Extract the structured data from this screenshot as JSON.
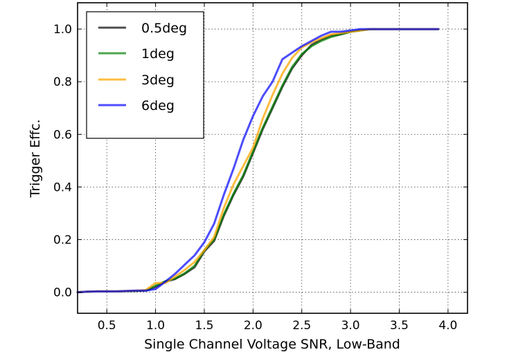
{
  "chart_data": {
    "type": "line",
    "title": "",
    "xlabel": "Single Channel Voltage SNR, Low-Band",
    "ylabel": "Trigger Effc.",
    "xlim": [
      0.2,
      4.2
    ],
    "ylim": [
      -0.08,
      1.1
    ],
    "grid": true,
    "legend_position": "top-left",
    "x_ticks": [
      0.5,
      1.0,
      1.5,
      2.0,
      2.5,
      3.0,
      3.5,
      4.0
    ],
    "x_tick_labels": [
      "0.5",
      "1.0",
      "1.5",
      "2.0",
      "2.5",
      "3.0",
      "3.5",
      "4.0"
    ],
    "y_ticks": [
      0.0,
      0.2,
      0.4,
      0.6,
      0.8,
      1.0
    ],
    "y_tick_labels": [
      "0.0",
      "0.2",
      "0.4",
      "0.6",
      "0.8",
      "1.0"
    ],
    "x": [
      0.2,
      0.3,
      0.4,
      0.5,
      0.6,
      0.7,
      0.8,
      0.9,
      1.0,
      1.1,
      1.2,
      1.3,
      1.4,
      1.5,
      1.6,
      1.7,
      1.8,
      1.9,
      2.0,
      2.1,
      2.2,
      2.3,
      2.4,
      2.5,
      2.6,
      2.7,
      2.8,
      2.9,
      3.0,
      3.1,
      3.2,
      3.3,
      3.4,
      3.5,
      3.6,
      3.7,
      3.8,
      3.9
    ],
    "series": [
      {
        "name": "0.5deg",
        "color": "#000000",
        "opacity": 0.7,
        "values": [
          0.0,
          0.002,
          0.003,
          0.003,
          0.003,
          0.004,
          0.005,
          0.006,
          0.02,
          0.04,
          0.05,
          0.07,
          0.095,
          0.155,
          0.195,
          0.29,
          0.37,
          0.44,
          0.53,
          0.62,
          0.7,
          0.78,
          0.85,
          0.9,
          0.94,
          0.96,
          0.975,
          0.98,
          0.99,
          0.995,
          1.0,
          1.0,
          1.0,
          1.0,
          1.0,
          1.0,
          1.0,
          1.0
        ]
      },
      {
        "name": "1deg",
        "color": "#008000",
        "opacity": 0.7,
        "values": [
          0.0,
          0.002,
          0.003,
          0.003,
          0.003,
          0.004,
          0.005,
          0.007,
          0.025,
          0.042,
          0.052,
          0.072,
          0.1,
          0.16,
          0.2,
          0.295,
          0.375,
          0.445,
          0.535,
          0.625,
          0.705,
          0.785,
          0.855,
          0.905,
          0.935,
          0.955,
          0.97,
          0.98,
          0.99,
          0.995,
          1.0,
          1.0,
          1.0,
          1.0,
          1.0,
          1.0,
          1.0,
          1.0
        ]
      },
      {
        "name": "3deg",
        "color": "#ffa500",
        "opacity": 0.75,
        "values": [
          0.0,
          0.002,
          0.003,
          0.003,
          0.003,
          0.005,
          0.006,
          0.008,
          0.035,
          0.035,
          0.06,
          0.085,
          0.115,
          0.16,
          0.21,
          0.32,
          0.41,
          0.48,
          0.55,
          0.66,
          0.75,
          0.83,
          0.89,
          0.93,
          0.95,
          0.965,
          0.98,
          0.985,
          0.99,
          0.995,
          1.0,
          1.0,
          1.0,
          1.0,
          1.0,
          1.0,
          1.0,
          1.0
        ]
      },
      {
        "name": "6deg",
        "color": "#0000ff",
        "opacity": 0.7,
        "values": [
          0.0,
          0.002,
          0.003,
          0.003,
          0.003,
          0.005,
          0.006,
          0.006,
          0.012,
          0.04,
          0.07,
          0.105,
          0.14,
          0.19,
          0.26,
          0.37,
          0.47,
          0.58,
          0.67,
          0.745,
          0.8,
          0.885,
          0.91,
          0.935,
          0.955,
          0.975,
          0.99,
          0.99,
          0.995,
          1.0,
          1.0,
          1.0,
          1.0,
          1.0,
          1.0,
          1.0,
          1.0,
          1.0
        ]
      }
    ]
  }
}
